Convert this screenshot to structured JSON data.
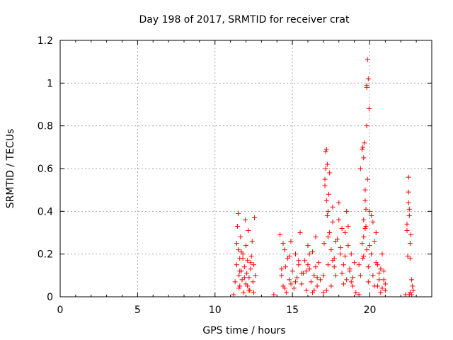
{
  "chart_data": {
    "type": "scatter",
    "title": "Day 198 of 2017, SRMTID for receiver crat",
    "xlabel": "GPS time / hours",
    "ylabel": "SRMTID / TECUs",
    "xlim": [
      0,
      24
    ],
    "ylim": [
      0,
      1.2
    ],
    "xticks": [
      0,
      5,
      10,
      15,
      20
    ],
    "xtick_labels": [
      "0",
      "5",
      "10",
      "15",
      "20"
    ],
    "yticks": [
      0,
      0.2,
      0.4,
      0.6,
      0.8,
      1,
      1.2
    ],
    "ytick_labels": [
      "0",
      "0.2",
      "0.4",
      "0.6",
      "0.8",
      "1",
      "1.2"
    ],
    "grid": true,
    "marker": "+",
    "color": "#ff0000",
    "series": [
      {
        "name": "SRMTID",
        "x": [
          11.2,
          11.3,
          11.4,
          11.45,
          11.5,
          11.5,
          11.55,
          11.6,
          11.6,
          11.65,
          11.7,
          11.75,
          11.8,
          11.85,
          11.9,
          11.95,
          12.0,
          12.0,
          12.05,
          12.1,
          12.15,
          12.2,
          12.25,
          12.3,
          12.35,
          12.4,
          12.45,
          12.5,
          12.55,
          12.6,
          11.55,
          11.6,
          11.7,
          11.9,
          12.1,
          12.3,
          12.5,
          11.4,
          11.8,
          12.2,
          13.8,
          14.2,
          14.3,
          14.4,
          14.5,
          14.55,
          14.6,
          14.7,
          14.8,
          14.9,
          15.0,
          15.1,
          15.2,
          15.3,
          15.4,
          15.5,
          15.6,
          15.7,
          15.8,
          15.9,
          16.0,
          16.1,
          16.2,
          16.3,
          16.4,
          16.5,
          16.6,
          16.7,
          16.8,
          14.3,
          14.5,
          14.8,
          15.2,
          15.6,
          16.0,
          16.3,
          16.6,
          14.4,
          14.9,
          15.4,
          15.9,
          16.4,
          16.1,
          16.5,
          17.0,
          17.05,
          17.1,
          17.15,
          17.2,
          17.25,
          17.3,
          17.35,
          17.4,
          17.5,
          17.6,
          17.7,
          17.8,
          17.9,
          18.0,
          18.1,
          18.2,
          18.3,
          18.4,
          18.5,
          18.6,
          18.7,
          18.8,
          18.9,
          19.0,
          19.1,
          17.1,
          17.15,
          17.2,
          17.25,
          17.3,
          17.4,
          17.5,
          17.6,
          17.8,
          18.0,
          18.2,
          18.4,
          18.6,
          18.8,
          17.0,
          17.3,
          17.7,
          18.1,
          18.5,
          18.9,
          17.2,
          17.6,
          18.3,
          18.7,
          19.3,
          19.4,
          19.5,
          19.55,
          19.6,
          19.65,
          19.7,
          19.75,
          19.8,
          19.85,
          19.9,
          19.95,
          20.0,
          20.1,
          20.2,
          20.3,
          20.4,
          20.5,
          20.6,
          20.7,
          20.8,
          20.9,
          21.0,
          19.5,
          19.6,
          19.7,
          19.8,
          19.8,
          19.85,
          19.9,
          19.75,
          19.8,
          19.7,
          19.6,
          19.55,
          19.9,
          20.0,
          20.2,
          20.4,
          20.6,
          20.8,
          19.4,
          19.6,
          20.3,
          20.7,
          20.9,
          21.0,
          19.3,
          20.1,
          20.5,
          22.3,
          22.4,
          22.45,
          22.5,
          22.5,
          22.55,
          22.55,
          22.6,
          22.6,
          22.65,
          22.7,
          22.75,
          22.8,
          22.4,
          22.5,
          22.55,
          22.6,
          22.7
        ],
        "y": [
          0.01,
          0.07,
          0.15,
          0.33,
          0.39,
          0.22,
          0.1,
          0.05,
          0.18,
          0.28,
          0.12,
          0.08,
          0.2,
          0.02,
          0.14,
          0.36,
          0.24,
          0.06,
          0.11,
          0.17,
          0.31,
          0.09,
          0.03,
          0.13,
          0.19,
          0.26,
          0.07,
          0.15,
          0.37,
          0.1,
          0.04,
          0.12,
          0.21,
          0.09,
          0.05,
          0.16,
          0.02,
          0.25,
          0.18,
          0.03,
          0.01,
          0.29,
          0.1,
          0.05,
          0.22,
          0.14,
          0.02,
          0.18,
          0.08,
          0.26,
          0.12,
          0.04,
          0.2,
          0.09,
          0.15,
          0.3,
          0.06,
          0.11,
          0.17,
          0.03,
          0.24,
          0.13,
          0.07,
          0.21,
          0.1,
          0.28,
          0.05,
          0.16,
          0.08,
          0.13,
          0.04,
          0.19,
          0.07,
          0.11,
          0.15,
          0.02,
          0.09,
          0.25,
          0.06,
          0.17,
          0.12,
          0.03,
          0.2,
          0.14,
          0.1,
          0.25,
          0.55,
          0.68,
          0.69,
          0.62,
          0.4,
          0.48,
          0.3,
          0.22,
          0.35,
          0.18,
          0.1,
          0.27,
          0.44,
          0.2,
          0.32,
          0.15,
          0.3,
          0.08,
          0.24,
          0.12,
          0.2,
          0.05,
          0.16,
          0.02,
          0.52,
          0.6,
          0.45,
          0.38,
          0.15,
          0.58,
          0.05,
          0.42,
          0.26,
          0.36,
          0.11,
          0.19,
          0.33,
          0.07,
          0.02,
          0.28,
          0.14,
          0.23,
          0.4,
          0.09,
          0.03,
          0.17,
          0.06,
          0.13,
          0.01,
          0.6,
          0.69,
          0.7,
          0.65,
          0.72,
          0.5,
          0.33,
          0.98,
          1.11,
          1.02,
          0.88,
          0.4,
          0.2,
          0.1,
          0.05,
          0.3,
          0.15,
          0.08,
          0.02,
          0.2,
          0.12,
          0.06,
          0.25,
          0.36,
          0.45,
          0.99,
          0.22,
          0.55,
          0.14,
          0.41,
          0.8,
          0.32,
          0.28,
          0.18,
          0.07,
          0.24,
          0.35,
          0.16,
          0.11,
          0.04,
          0.1,
          0.19,
          0.26,
          0.13,
          0.08,
          0.03,
          0.15,
          0.38,
          0.05,
          0.01,
          0.31,
          0.19,
          0.49,
          0.56,
          0.41,
          0.38,
          0.18,
          0.25,
          0.29,
          0.08,
          0.05,
          0.03,
          0.34,
          0.44,
          0.01,
          0.02,
          0.01
        ]
      }
    ]
  }
}
